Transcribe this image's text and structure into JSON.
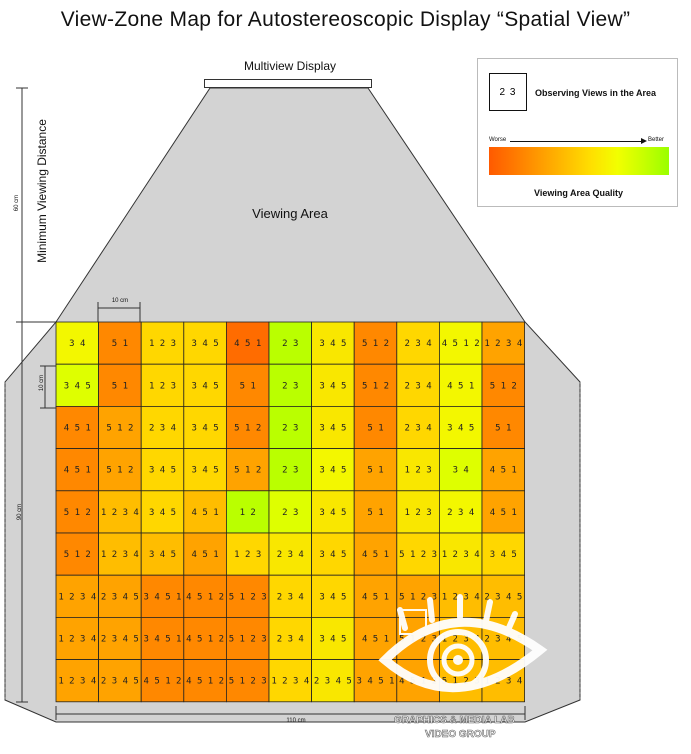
{
  "title": "View-Zone Map for Autostereoscopic Display “Spatial View”",
  "display_label": "Multiview Display",
  "viewing_area_label": "Viewing Area",
  "min_distance_label": "Minimum Viewing Distance",
  "dimensions": {
    "d60": "60 cm",
    "d90": "90 cm",
    "d10_h": "10 cm",
    "d10_v": "10 cm",
    "d110": "110 cm"
  },
  "legend": {
    "sample_value": "2 3",
    "observe_label": "Observing Views in the Area",
    "worse_label": "Worse",
    "better_label": "Better",
    "quality_label": "Viewing Area Quality",
    "gradient_colors": [
      "#ff5a00",
      "#ff7a00",
      "#ff9c00",
      "#ffbe00",
      "#ffe000",
      "#f2ff00",
      "#c8ff00",
      "#9aff00"
    ]
  },
  "watermark": {
    "line1": "GRAPHICS & MEDIA LAB",
    "line2": "VIDEO GROUP"
  },
  "grid": {
    "rows": [
      [
        "3 4",
        "5 1",
        "1 2 3",
        "3 4 5",
        "4 5 1",
        "2 3",
        "3 4 5",
        "5 1 2",
        "2 3 4",
        "4 5 1 2",
        "1 2 3 4"
      ],
      [
        "3 4 5",
        "5 1",
        "1 2 3",
        "3 4 5",
        "5 1",
        "2 3",
        "3 4 5",
        "5 1 2",
        "2 3 4",
        "4 5 1",
        "5 1 2"
      ],
      [
        "4 5 1",
        "5 1 2",
        "2 3 4",
        "3 4 5",
        "5 1 2",
        "2 3",
        "3 4 5",
        "5 1",
        "2 3 4",
        "3 4 5",
        "5 1"
      ],
      [
        "4 5 1",
        "5 1 2",
        "3 4 5",
        "3 4 5",
        "5 1 2",
        "2 3",
        "3 4 5",
        "5 1",
        "1 2 3",
        "3 4",
        "4 5 1"
      ],
      [
        "5 1 2",
        "1 2 3 4",
        "3 4 5",
        "4 5 1",
        "1 2",
        "2 3",
        "3 4 5",
        "5 1",
        "1 2 3",
        "2 3 4",
        "4 5 1"
      ],
      [
        "5 1 2",
        "1 2 3 4",
        "3 4 5",
        "4 5 1",
        "1 2 3",
        "2 3 4",
        "3 4 5",
        "4 5 1",
        "5 1 2 3",
        "1 2 3 4",
        "3 4 5"
      ],
      [
        "1 2 3 4",
        "2 3 4 5",
        "3 4 5 1",
        "4 5 1 2",
        "5 1 2 3",
        "2 3 4",
        "3 4 5",
        "4 5 1",
        "5 1 2 3",
        "1 2 3 4",
        "2 3 4 5"
      ],
      [
        "1 2 3 4",
        "2 3 4 5",
        "3 4 5 1",
        "4 5 1 2",
        "5 1 2 3",
        "2 3 4",
        "3 4 5",
        "4 5 1",
        "5 1 2 3",
        "1 2 3 4",
        "2 3 4 5"
      ],
      [
        "1 2 3 4",
        "2 3 4 5",
        "4 5 1 2",
        "4 5 1 2",
        "5 1 2 3",
        "1 2 3 4",
        "2 3 4 5",
        "3 4 5 1",
        "4 5 1 2",
        "5 1 2 3",
        "1 2 3 4"
      ]
    ],
    "quality": [
      [
        0.7,
        0.2,
        0.5,
        0.5,
        0.1,
        0.9,
        0.6,
        0.2,
        0.5,
        0.7,
        0.3
      ],
      [
        0.8,
        0.2,
        0.5,
        0.5,
        0.2,
        0.9,
        0.6,
        0.2,
        0.5,
        0.7,
        0.2
      ],
      [
        0.2,
        0.3,
        0.5,
        0.5,
        0.2,
        0.9,
        0.6,
        0.2,
        0.5,
        0.7,
        0.2
      ],
      [
        0.2,
        0.3,
        0.5,
        0.5,
        0.3,
        0.9,
        0.7,
        0.3,
        0.6,
        0.8,
        0.3
      ],
      [
        0.2,
        0.4,
        0.5,
        0.4,
        0.9,
        0.8,
        0.6,
        0.3,
        0.6,
        0.7,
        0.3
      ],
      [
        0.2,
        0.4,
        0.4,
        0.3,
        0.5,
        0.6,
        0.5,
        0.3,
        0.5,
        0.6,
        0.5
      ],
      [
        0.3,
        0.3,
        0.2,
        0.2,
        0.2,
        0.5,
        0.5,
        0.3,
        0.3,
        0.4,
        0.4
      ],
      [
        0.3,
        0.3,
        0.2,
        0.2,
        0.2,
        0.5,
        0.6,
        0.3,
        0.3,
        0.4,
        0.4
      ],
      [
        0.3,
        0.3,
        0.2,
        0.2,
        0.2,
        0.5,
        0.6,
        0.3,
        0.3,
        0.4,
        0.4
      ]
    ]
  }
}
